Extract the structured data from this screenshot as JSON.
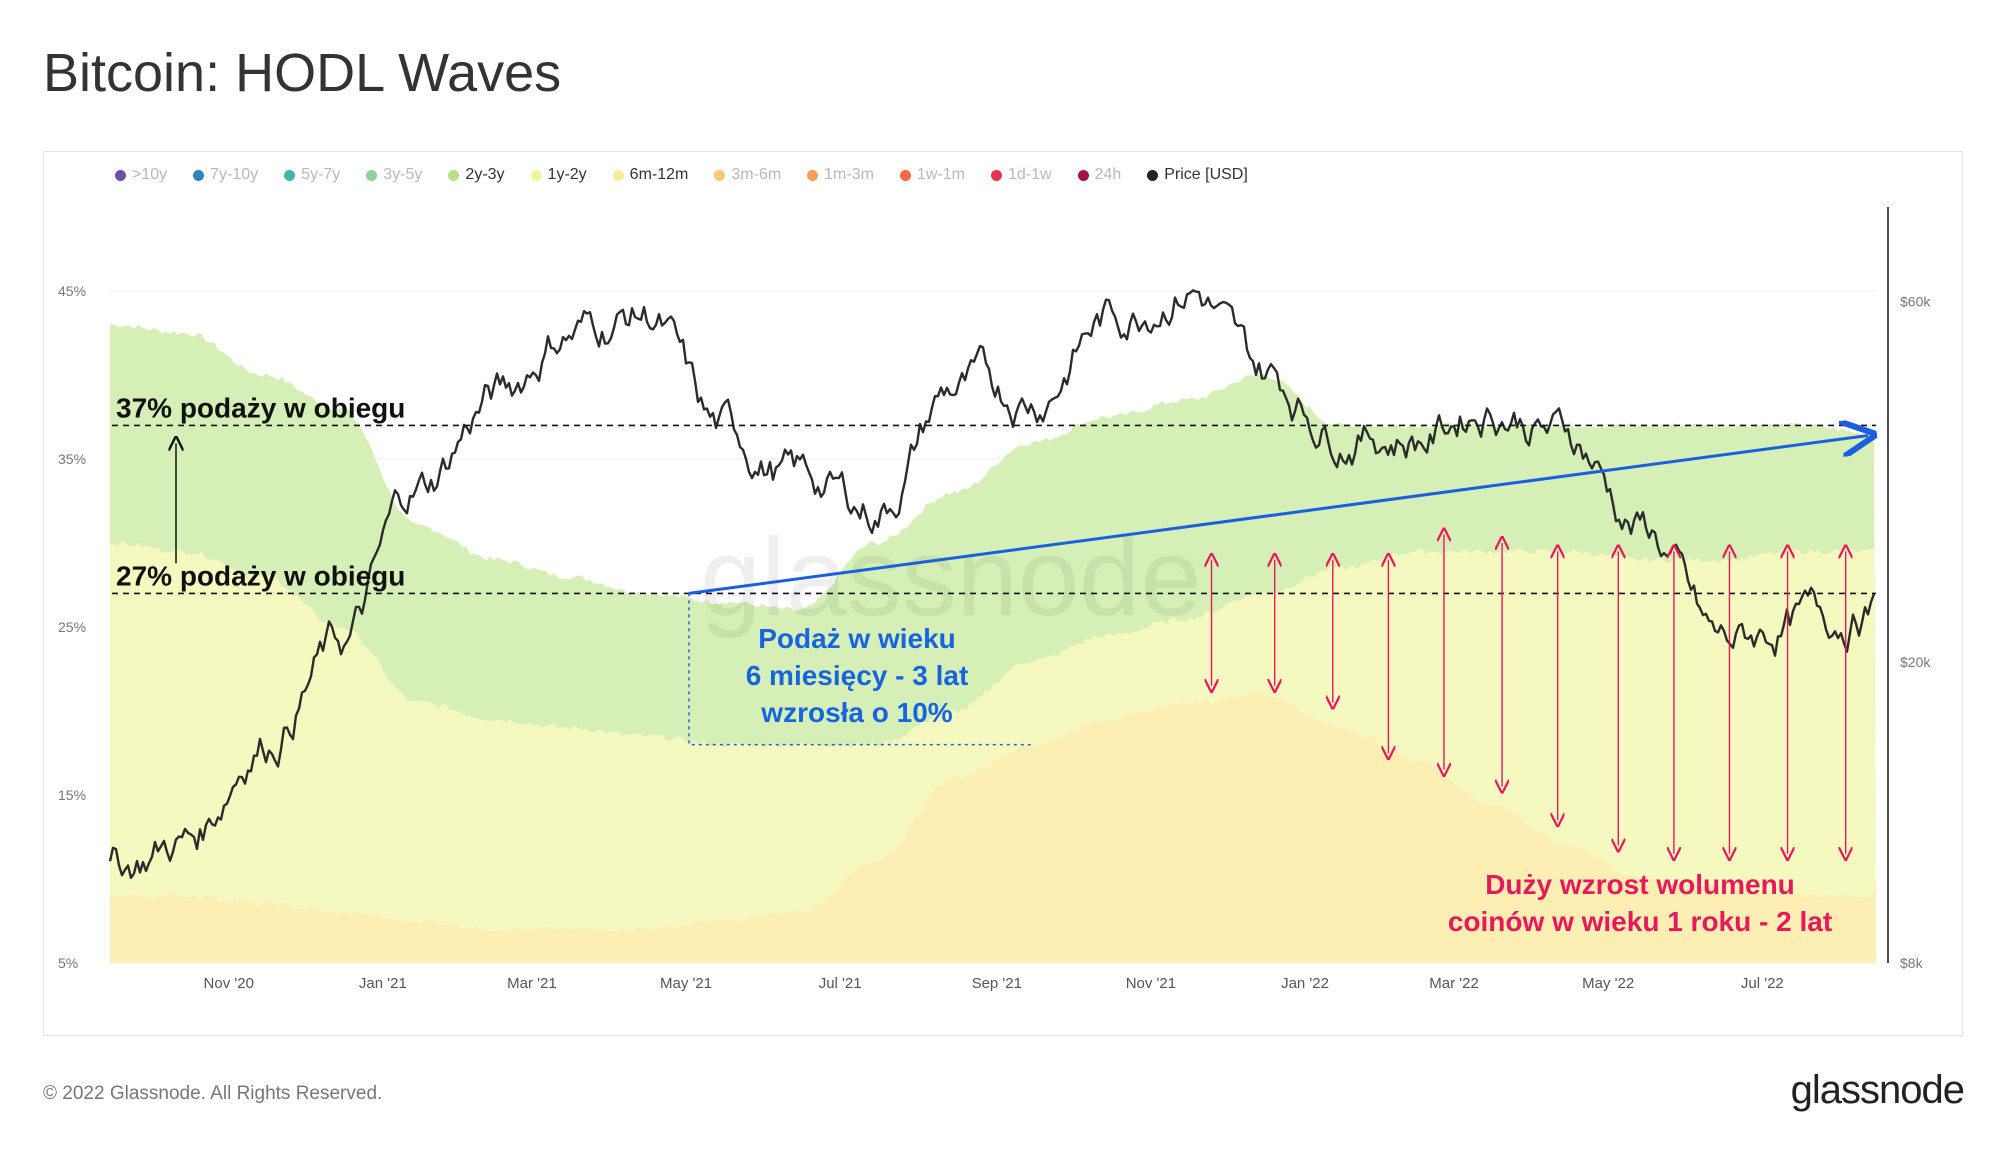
{
  "title": "Bitcoin: HODL Waves",
  "footer": {
    "copyright": "© 2022 Glassnode. All Rights Reserved.",
    "brand": "glassnode"
  },
  "watermark": "glassnode",
  "legend": [
    {
      "label": ">10y",
      "color": "#6a51a3",
      "state": "dim"
    },
    {
      "label": "7y-10y",
      "color": "#3182bd",
      "state": "dim"
    },
    {
      "label": "5y-7y",
      "color": "#41b6a6",
      "state": "dim"
    },
    {
      "label": "3y-5y",
      "color": "#8fd19e",
      "state": "dim"
    },
    {
      "label": "2y-3y",
      "color": "#b8e08a",
      "state": "active"
    },
    {
      "label": "1y-2y",
      "color": "#f2f5a0",
      "state": "active"
    },
    {
      "label": "6m-12m",
      "color": "#fde89a",
      "state": "active"
    },
    {
      "label": "3m-6m",
      "color": "#fdc877",
      "state": "dim"
    },
    {
      "label": "1m-3m",
      "color": "#fb9e5a",
      "state": "dim"
    },
    {
      "label": "1w-1m",
      "color": "#f46a44",
      "state": "dim"
    },
    {
      "label": "1d-1w",
      "color": "#e0364f",
      "state": "dim"
    },
    {
      "label": "24h",
      "color": "#a50f4a",
      "state": "dim"
    },
    {
      "label": "Price [USD]",
      "color": "#222222",
      "state": "active"
    }
  ],
  "colors": {
    "band_6m_12m": "#fdeeb4",
    "band_1y_2y": "#f5f8bf",
    "band_2y_3y": "#d6efb6",
    "price_line": "#2b2b2b",
    "trend_line": "#1a5fe0",
    "arrows": "#e8185d",
    "grid": "#ececec"
  },
  "annotations": {
    "line_37": "37% podaży w obiegu",
    "line_27": "27% podaży w obiegu",
    "blue_text": [
      "Podaż w wieku",
      "6 miesięcy - 3 lat",
      "wzrosła o 10%"
    ],
    "red_text": [
      "Duży wzrost wolumenu",
      "coinów w wieku 1 roku - 2 lat"
    ]
  },
  "chart_data": {
    "type": "area",
    "title": "Bitcoin: HODL Waves",
    "x_ticks": [
      "Nov '20",
      "Jan '21",
      "Mar '21",
      "May '21",
      "Jul '21",
      "Sep '21",
      "Nov '21",
      "Jan '22",
      "Mar '22",
      "May '22",
      "Jul '22"
    ],
    "x_range": [
      "2020-09-15",
      "2022-08-15"
    ],
    "y_left": {
      "ticks": [
        "5%",
        "15%",
        "25%",
        "35%",
        "45%"
      ],
      "range": [
        5,
        50
      ]
    },
    "y_right": {
      "ticks": [
        "$8k",
        "$20k",
        "$60k"
      ],
      "scale": "log",
      "range": [
        8000,
        80000
      ]
    },
    "x": [
      "2020-09-15",
      "2020-10-15",
      "2020-11-15",
      "2020-12-15",
      "2021-01-15",
      "2021-02-15",
      "2021-03-15",
      "2021-04-15",
      "2021-05-15",
      "2021-06-15",
      "2021-07-15",
      "2021-08-15",
      "2021-09-15",
      "2021-10-15",
      "2021-11-15",
      "2021-12-15",
      "2022-01-15",
      "2022-02-15",
      "2022-03-15",
      "2022-04-15",
      "2022-05-15",
      "2022-06-15",
      "2022-07-15",
      "2022-08-15"
    ],
    "series": [
      {
        "name": "6m-12m",
        "cumulative_top_pct": [
          9,
          9,
          8.5,
          8,
          7.5,
          7,
          7,
          7,
          7.5,
          8,
          11,
          16,
          18,
          19.5,
          20.5,
          21,
          19,
          17,
          14.5,
          12,
          10,
          9.5,
          9,
          9
        ]
      },
      {
        "name": "1y-2y",
        "cumulative_top_pct": [
          30,
          29.5,
          28,
          25,
          20.5,
          19.5,
          19,
          18.5,
          18,
          18,
          18,
          20,
          23,
          24.5,
          25.5,
          27,
          28.5,
          29.5,
          29.5,
          29.5,
          29,
          29,
          29.5,
          29.5
        ]
      },
      {
        "name": "2y-3y",
        "cumulative_top_pct": [
          43,
          42.5,
          40,
          38,
          31,
          29,
          28,
          27,
          26.5,
          26,
          30,
          33,
          36,
          37.5,
          38.5,
          40,
          37,
          37,
          37,
          37,
          37,
          37,
          37,
          36.5
        ]
      },
      {
        "name": "Price [USD]",
        "values": [
          10700,
          11600,
          16000,
          21000,
          34000,
          45000,
          55000,
          58000,
          40000,
          35000,
          32000,
          46000,
          45000,
          57000,
          64000,
          48000,
          41000,
          40000,
          44000,
          40000,
          30000,
          21000,
          22500,
          23500
        ]
      }
    ],
    "legend_position": "top-left",
    "grid": true
  }
}
